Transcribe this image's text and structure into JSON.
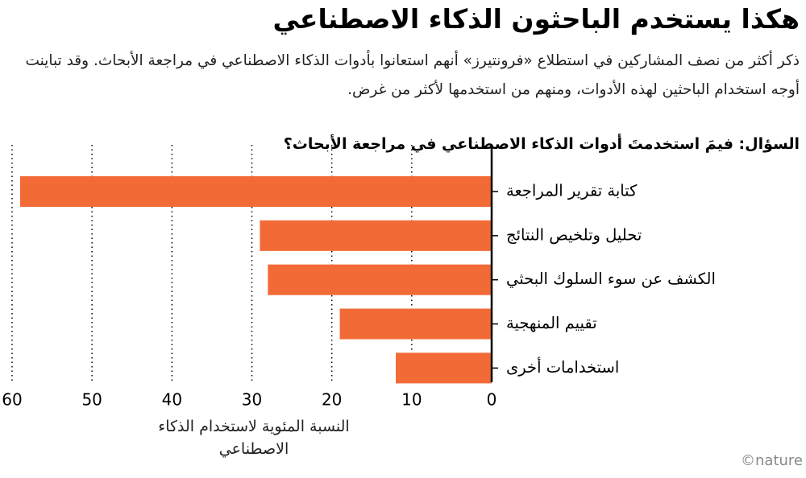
{
  "chart_data": {
    "type": "bar",
    "orientation": "horizontal",
    "title": "هكذا يستخدم الباحثون الذكاء الاصطناعي",
    "subtitle": "ذكر أكثر من نصف المشاركين في استطلاع «فرونتيرز» أنهم استعانوا بأدوات الذكاء الاصطناعي في مراجعة الأبحاث. وقد تباينت أوجه استخدام الباحثين لهذه الأدوات، ومنهم من استخدمها لأكثر من غرض.",
    "question": "السؤال: فيمَ استخدمتَ أدوات الذكاء الاصطناعي في مراجعة الأبحاث؟",
    "x_label": "النسبة المئوية لاستخدام الذكاء الاصطناعي",
    "source": "©nature",
    "categories": [
      "كتابة تقرير المراجعة",
      "تحليل وتلخيص النتائج",
      "الكشف عن سوء السلوك البحثي",
      "تقييم المنهجية",
      "استخدامات أخرى"
    ],
    "values": [
      59,
      29,
      28,
      19,
      12
    ],
    "color": "#f26a36",
    "xlim": [
      0,
      60
    ],
    "xticks": [
      0,
      10,
      20,
      30,
      40,
      50,
      60
    ],
    "x_reversed": true,
    "grid": true
  }
}
